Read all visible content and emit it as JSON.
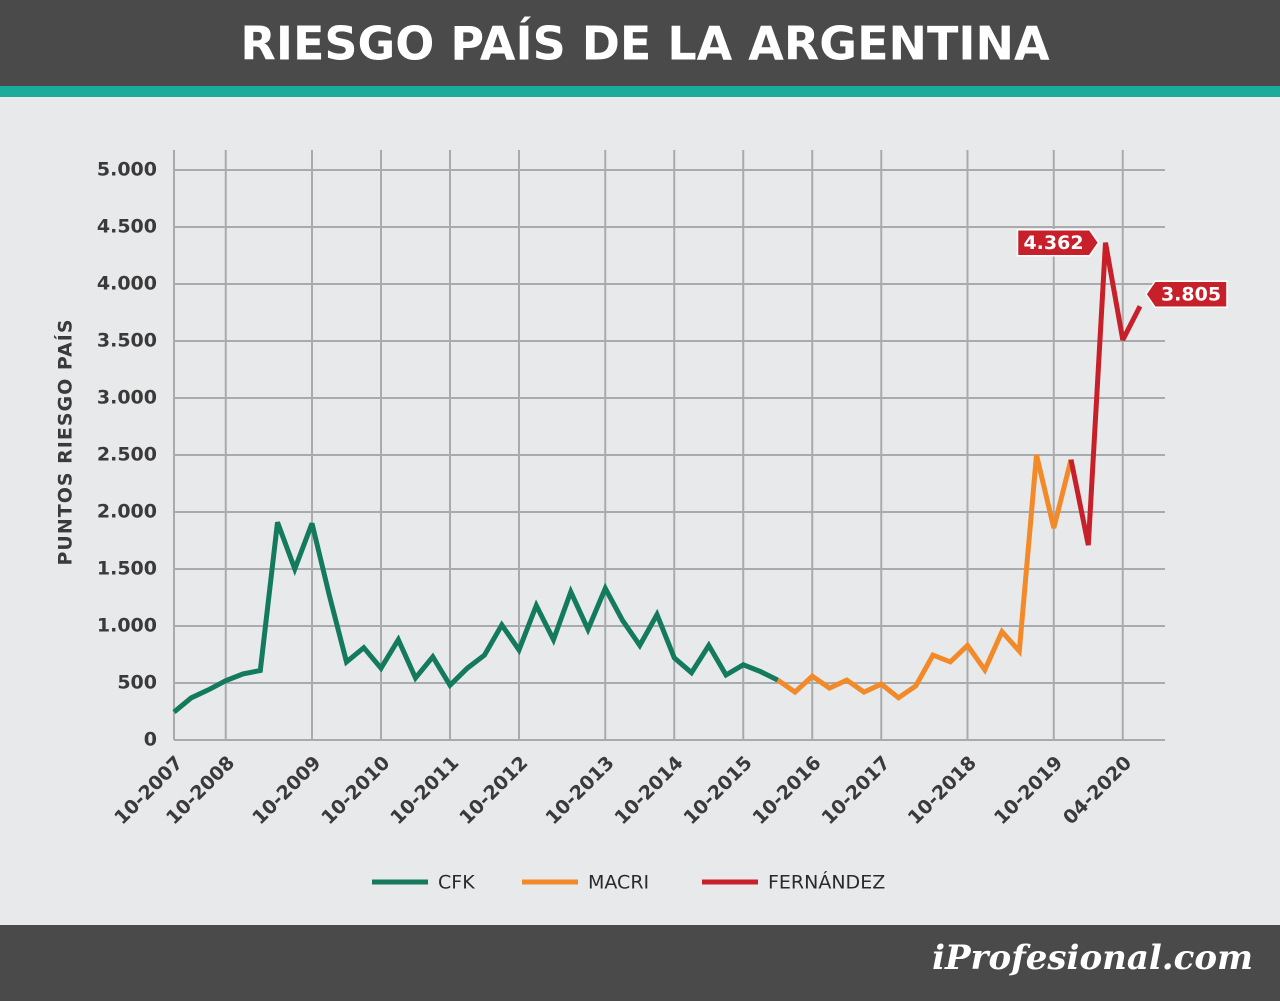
{
  "chart_data": {
    "type": "line",
    "title": "RIESGO PAÍS DE LA ARGENTINA",
    "y_label": "PUNTOS RIESGO PAÍS",
    "source": "iProfesional.com",
    "categories": [
      "10-2007",
      null,
      null,
      "10-2008",
      null,
      null,
      null,
      null,
      "10-2009",
      null,
      null,
      null,
      "10-2010",
      null,
      null,
      null,
      "10-2011",
      null,
      null,
      null,
      "10-2012",
      null,
      null,
      null,
      null,
      "10-2013",
      null,
      null,
      null,
      "10-2014",
      null,
      null,
      null,
      "10-2015",
      null,
      null,
      null,
      "10-2016",
      null,
      null,
      null,
      "10-2017",
      null,
      null,
      null,
      null,
      "10-2018",
      null,
      null,
      null,
      null,
      "10-2019",
      null,
      null,
      null,
      "04-2020",
      null
    ],
    "series": [
      {
        "name": "CFK",
        "color": "#137a5e",
        "values": [
          245,
          370,
          440,
          520,
          580,
          610,
          1910,
          1500,
          1900,
          1270,
          685,
          810,
          630,
          880,
          545,
          730,
          480,
          630,
          745,
          1010,
          790,
          1180,
          880,
          1300,
          970,
          1330,
          1050,
          830,
          1100,
          720,
          590,
          830,
          570,
          660,
          600,
          525,
          null,
          null,
          null,
          null,
          null,
          null,
          null,
          null,
          null,
          null,
          null,
          null,
          null,
          null,
          null,
          null,
          null,
          null,
          null,
          null,
          null
        ]
      },
      {
        "name": "MACRI",
        "color": "#f28a2a",
        "values": [
          null,
          null,
          null,
          null,
          null,
          null,
          null,
          null,
          null,
          null,
          null,
          null,
          null,
          null,
          null,
          null,
          null,
          null,
          null,
          null,
          null,
          null,
          null,
          null,
          null,
          null,
          null,
          null,
          null,
          null,
          null,
          null,
          null,
          null,
          null,
          525,
          420,
          560,
          455,
          525,
          420,
          490,
          370,
          475,
          745,
          685,
          830,
          615,
          950,
          780,
          2500,
          1860,
          2460,
          null,
          null,
          null,
          null
        ]
      },
      {
        "name": "FERNÁNDEZ",
        "color": "#c8202a",
        "values": [
          null,
          null,
          null,
          null,
          null,
          null,
          null,
          null,
          null,
          null,
          null,
          null,
          null,
          null,
          null,
          null,
          null,
          null,
          null,
          null,
          null,
          null,
          null,
          null,
          null,
          null,
          null,
          null,
          null,
          null,
          null,
          null,
          null,
          null,
          null,
          null,
          null,
          null,
          null,
          null,
          null,
          null,
          null,
          null,
          null,
          null,
          null,
          null,
          null,
          null,
          null,
          null,
          2460,
          1710,
          4362,
          3510,
          3805
        ],
        "value_labels": [
          null,
          null,
          null,
          null,
          null,
          null,
          null,
          null,
          null,
          null,
          null,
          null,
          null,
          null,
          null,
          null,
          null,
          null,
          null,
          null,
          null,
          null,
          null,
          null,
          null,
          null,
          null,
          null,
          null,
          null,
          null,
          null,
          null,
          null,
          null,
          null,
          null,
          null,
          null,
          null,
          null,
          null,
          null,
          null,
          null,
          null,
          null,
          null,
          null,
          null,
          null,
          null,
          null,
          null,
          "4.362",
          null,
          "3.805"
        ]
      }
    ],
    "ylim": [
      0,
      5000
    ],
    "yticks": [
      0,
      500,
      {
        "value": 1000,
        "label": "1.000"
      },
      {
        "value": 1500,
        "label": "1.500"
      },
      {
        "value": 2000,
        "label": "2.000"
      },
      {
        "value": 2500,
        "label": "2.500"
      },
      {
        "value": 3000,
        "label": "3.000"
      },
      {
        "value": 3500,
        "label": "3.500"
      },
      {
        "value": 4000,
        "label": "4.000"
      },
      {
        "value": 4500,
        "label": "4.500"
      },
      {
        "value": 5000,
        "label": "5.000"
      }
    ],
    "grid": true
  }
}
